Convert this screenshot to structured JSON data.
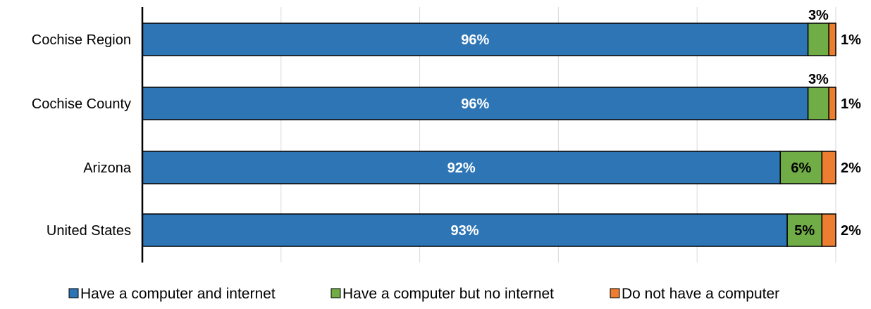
{
  "chart_data": {
    "type": "bar",
    "orientation": "horizontal",
    "stacked": true,
    "categories": [
      "Cochise Region",
      "Cochise County",
      "Arizona",
      "United States"
    ],
    "series": [
      {
        "name": "Have a computer and internet",
        "color": "#2e75b6",
        "values": [
          96,
          96,
          92,
          93
        ],
        "labels": [
          "96%",
          "96%",
          "92%",
          "93%"
        ]
      },
      {
        "name": "Have a computer but no internet",
        "color": "#70ad47",
        "values": [
          3,
          3,
          6,
          5
        ],
        "labels": [
          "3%",
          "3%",
          "6%",
          "5%"
        ]
      },
      {
        "name": "Do not have a computer",
        "color": "#ed7d31",
        "values": [
          1,
          1,
          2,
          2
        ],
        "labels": [
          "1%",
          "1%",
          "2%",
          "2%"
        ]
      }
    ],
    "xlim": [
      0,
      100
    ],
    "grid": true,
    "legend_position": "bottom"
  }
}
